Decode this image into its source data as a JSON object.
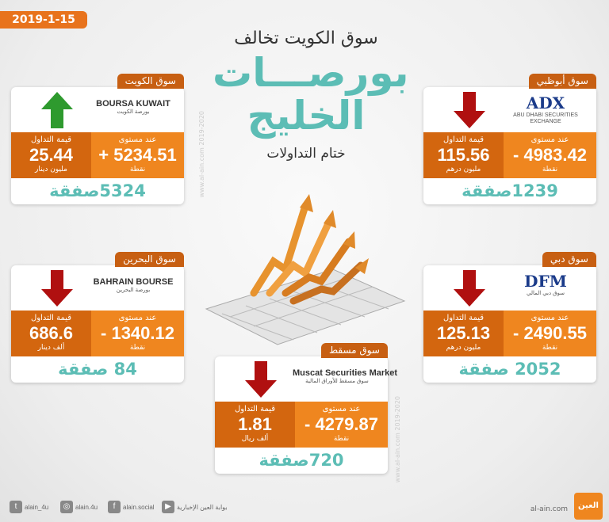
{
  "date": "2019-1-15",
  "title": {
    "line1": "سوق الكويت تخالف",
    "line2": "بورصـــات",
    "line3": "الخليج",
    "subtitle": "ختام التداولات"
  },
  "watermark": "www.al-ain.com 2019-2020",
  "colors": {
    "orange": "#ef861f",
    "dark_orange": "#d3660f",
    "teal": "#5cbdb5",
    "up": "#2e9a2e",
    "down": "#b01010"
  },
  "markets": [
    {
      "id": "kuwait",
      "name": "سوق الكويت",
      "logo": "BOURSA KUWAIT",
      "logo_ar": "بورصة الكويت",
      "direction": "up",
      "level_label": "عند مستوى",
      "level": "+ 5234.51",
      "level_unit": "نقطة",
      "value_label": "قيمة التداول",
      "value": "25.44",
      "value_unit": "مليون دينار",
      "deals": "5324صفقة"
    },
    {
      "id": "abudhabi",
      "name": "سوق أبوظبي",
      "logo": "ADX",
      "logo_ar": "ABU DHABI SECURITIES EXCHANGE",
      "direction": "down",
      "level_label": "عند مستوى",
      "level": "- 4983.42",
      "level_unit": "نقطة",
      "value_label": "قيمة التداول",
      "value": "115.56",
      "value_unit": "مليون درهم",
      "deals": "1239صفقة"
    },
    {
      "id": "bahrain",
      "name": "سوق البحرين",
      "logo": "BAHRAIN BOURSE",
      "logo_ar": "بورصة البحرين",
      "direction": "down",
      "level_label": "عند مستوى",
      "level": "- 1340.12",
      "level_unit": "نقطة",
      "value_label": "قيمة التداول",
      "value": "686.6",
      "value_unit": "ألف دينار",
      "deals": "84 صفقة"
    },
    {
      "id": "dubai",
      "name": "سوق دبي",
      "logo": "DFM",
      "logo_ar": "سوق دبي المالي",
      "direction": "down",
      "level_label": "عند مستوى",
      "level": "- 2490.55",
      "level_unit": "نقطة",
      "value_label": "قيمة التداول",
      "value": "125.13",
      "value_unit": "مليون درهم",
      "deals": "2052 صفقة"
    },
    {
      "id": "muscat",
      "name": "سوق مسقط",
      "logo": "Muscat Securities Market",
      "logo_ar": "سوق مسقط للأوراق المالية",
      "direction": "down",
      "level_label": "عند مستوى",
      "level": "- 4279.87",
      "level_unit": "نقطة",
      "value_label": "قيمة التداول",
      "value": "1.81",
      "value_unit": "ألف ريال",
      "deals": "720صفقة"
    }
  ],
  "footer": {
    "social": [
      {
        "icon": "twitter-icon",
        "glyph": "t",
        "label": "alain_4u"
      },
      {
        "icon": "instagram-icon",
        "glyph": "◎",
        "label": "alain.4u"
      },
      {
        "icon": "facebook-icon",
        "glyph": "f",
        "label": "alain.social"
      },
      {
        "icon": "youtube-icon",
        "glyph": "▶",
        "label": "بوابة العين الإخبارية"
      }
    ],
    "site": "al-ain.com",
    "brand": "العين"
  }
}
